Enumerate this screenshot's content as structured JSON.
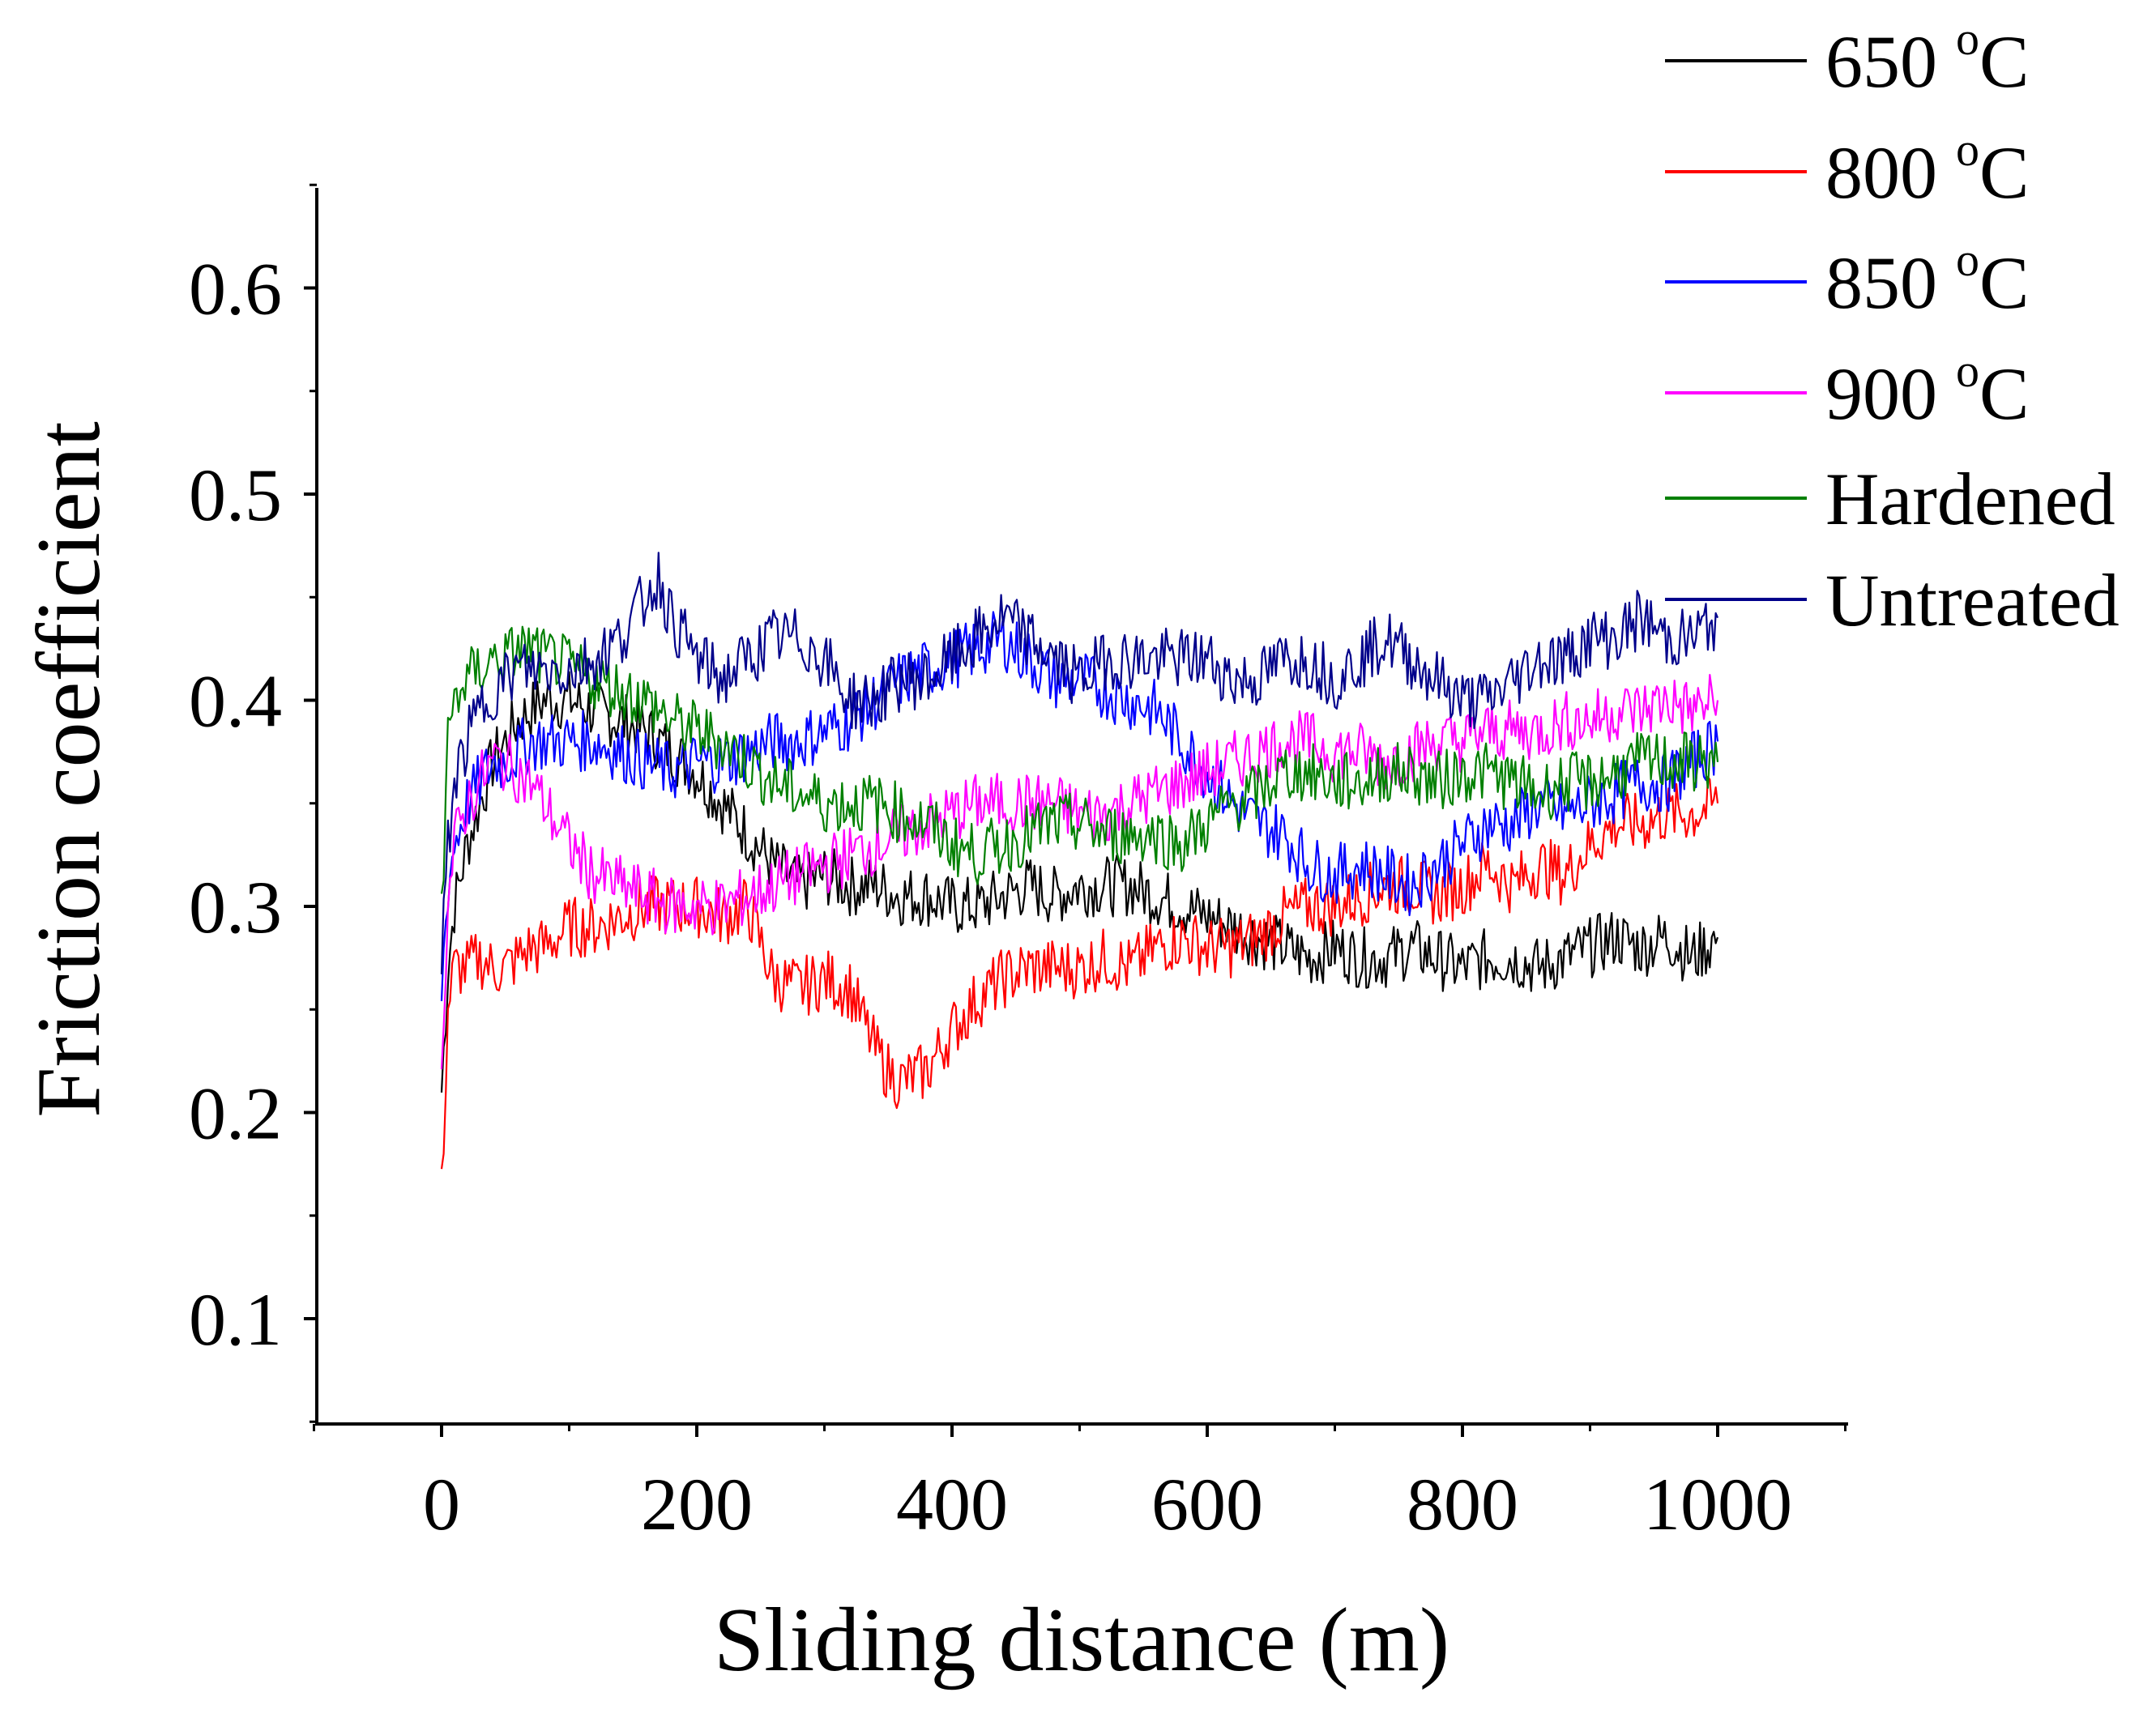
{
  "chart_data": {
    "type": "line",
    "title": "",
    "xlabel": "Sliding distance (m)",
    "ylabel": "Friction coefficient",
    "xlim": [
      -100,
      1100
    ],
    "ylim": [
      0.05,
      0.65
    ],
    "x_ticks": [
      0,
      200,
      400,
      600,
      800,
      1000
    ],
    "x_tick_labels": [
      "0",
      "200",
      "400",
      "600",
      "800",
      "1000"
    ],
    "y_ticks": [
      0.1,
      0.2,
      0.3,
      0.4,
      0.5,
      0.6
    ],
    "y_tick_labels": [
      "0.1",
      "0.2",
      "0.3",
      "0.4",
      "0.5",
      "0.6"
    ],
    "grid": false,
    "legend_position": "top-right",
    "series": [
      {
        "name": "650 oC",
        "name_main": "650 ",
        "name_sup": "o",
        "name_tail": "C",
        "color": "#000000",
        "x": [
          0,
          5,
          10,
          20,
          30,
          40,
          50,
          60,
          70,
          80,
          90,
          100,
          120,
          140,
          160,
          180,
          200,
          220,
          240,
          260,
          280,
          300,
          320,
          340,
          360,
          380,
          400,
          420,
          440,
          460,
          480,
          500,
          520,
          540,
          560,
          580,
          600,
          620,
          640,
          660,
          680,
          700,
          720,
          740,
          760,
          780,
          800,
          820,
          840,
          860,
          880,
          900,
          920,
          940,
          960,
          980,
          1000
        ],
        "y": [
          0.21,
          0.27,
          0.3,
          0.33,
          0.35,
          0.37,
          0.38,
          0.39,
          0.395,
          0.4,
          0.4,
          0.4,
          0.395,
          0.39,
          0.385,
          0.375,
          0.365,
          0.35,
          0.335,
          0.32,
          0.31,
          0.315,
          0.31,
          0.31,
          0.305,
          0.305,
          0.3,
          0.3,
          0.305,
          0.31,
          0.305,
          0.31,
          0.31,
          0.31,
          0.305,
          0.3,
          0.295,
          0.29,
          0.285,
          0.28,
          0.275,
          0.28,
          0.275,
          0.275,
          0.28,
          0.275,
          0.27,
          0.275,
          0.275,
          0.27,
          0.275,
          0.28,
          0.285,
          0.28,
          0.285,
          0.275,
          0.285
        ]
      },
      {
        "name": "800 oC",
        "name_main": "800 ",
        "name_sup": "o",
        "name_tail": "C",
        "color": "#ff0000",
        "x": [
          0,
          5,
          10,
          20,
          30,
          40,
          50,
          60,
          70,
          80,
          90,
          100,
          120,
          140,
          160,
          180,
          200,
          220,
          240,
          260,
          280,
          300,
          320,
          340,
          350,
          360,
          380,
          400,
          420,
          440,
          460,
          480,
          500,
          520,
          540,
          560,
          580,
          600,
          620,
          640,
          660,
          680,
          700,
          720,
          740,
          760,
          780,
          800,
          820,
          840,
          860,
          880,
          900,
          920,
          940,
          960,
          980,
          1000
        ],
        "y": [
          0.16,
          0.25,
          0.27,
          0.27,
          0.275,
          0.27,
          0.27,
          0.275,
          0.28,
          0.28,
          0.285,
          0.29,
          0.29,
          0.295,
          0.3,
          0.3,
          0.3,
          0.295,
          0.3,
          0.265,
          0.26,
          0.265,
          0.26,
          0.23,
          0.22,
          0.215,
          0.22,
          0.24,
          0.255,
          0.265,
          0.27,
          0.27,
          0.27,
          0.275,
          0.27,
          0.28,
          0.285,
          0.28,
          0.28,
          0.285,
          0.295,
          0.3,
          0.3,
          0.305,
          0.31,
          0.31,
          0.305,
          0.31,
          0.32,
          0.31,
          0.32,
          0.315,
          0.33,
          0.34,
          0.34,
          0.345,
          0.345,
          0.35
        ]
      },
      {
        "name": "850 oC",
        "name_main": "850 ",
        "name_sup": "o",
        "name_tail": "C",
        "color": "#0000ff",
        "x": [
          0,
          5,
          10,
          20,
          30,
          40,
          50,
          60,
          70,
          80,
          90,
          100,
          120,
          140,
          160,
          180,
          200,
          220,
          240,
          260,
          280,
          300,
          320,
          340,
          360,
          380,
          400,
          420,
          440,
          460,
          480,
          500,
          520,
          540,
          560,
          580,
          600,
          620,
          640,
          660,
          680,
          700,
          720,
          740,
          760,
          780,
          800,
          820,
          840,
          860,
          880,
          900,
          920,
          940,
          960,
          980,
          1000
        ],
        "y": [
          0.26,
          0.31,
          0.33,
          0.35,
          0.36,
          0.37,
          0.37,
          0.375,
          0.38,
          0.38,
          0.38,
          0.38,
          0.38,
          0.375,
          0.37,
          0.365,
          0.37,
          0.37,
          0.375,
          0.38,
          0.38,
          0.385,
          0.39,
          0.4,
          0.41,
          0.415,
          0.42,
          0.425,
          0.43,
          0.42,
          0.41,
          0.41,
          0.405,
          0.4,
          0.395,
          0.38,
          0.365,
          0.35,
          0.34,
          0.335,
          0.32,
          0.315,
          0.32,
          0.315,
          0.31,
          0.32,
          0.33,
          0.34,
          0.34,
          0.35,
          0.345,
          0.35,
          0.355,
          0.36,
          0.36,
          0.37,
          0.38
        ]
      },
      {
        "name": "900 oC",
        "name_main": "900 ",
        "name_sup": "o",
        "name_tail": "C",
        "color": "#ff00ff",
        "x": [
          0,
          5,
          10,
          20,
          30,
          40,
          50,
          60,
          70,
          80,
          90,
          100,
          120,
          140,
          160,
          180,
          200,
          220,
          240,
          260,
          280,
          300,
          320,
          340,
          360,
          380,
          400,
          420,
          440,
          460,
          480,
          500,
          520,
          540,
          560,
          580,
          600,
          620,
          640,
          660,
          680,
          700,
          720,
          740,
          760,
          780,
          800,
          820,
          840,
          860,
          880,
          900,
          920,
          940,
          960,
          980,
          1000
        ],
        "y": [
          0.23,
          0.3,
          0.33,
          0.35,
          0.36,
          0.37,
          0.37,
          0.365,
          0.36,
          0.35,
          0.34,
          0.33,
          0.315,
          0.31,
          0.305,
          0.3,
          0.3,
          0.3,
          0.305,
          0.31,
          0.315,
          0.32,
          0.325,
          0.33,
          0.335,
          0.34,
          0.345,
          0.35,
          0.35,
          0.35,
          0.35,
          0.345,
          0.345,
          0.35,
          0.355,
          0.36,
          0.365,
          0.37,
          0.375,
          0.38,
          0.38,
          0.375,
          0.375,
          0.37,
          0.375,
          0.38,
          0.38,
          0.385,
          0.385,
          0.385,
          0.39,
          0.39,
          0.395,
          0.395,
          0.4,
          0.395,
          0.4
        ]
      },
      {
        "name": "Hardened",
        "name_main": "Hardened",
        "name_sup": "",
        "name_tail": "",
        "color": "#008000",
        "x": [
          0,
          5,
          10,
          20,
          30,
          40,
          50,
          60,
          70,
          80,
          90,
          100,
          120,
          140,
          160,
          180,
          200,
          220,
          240,
          260,
          280,
          300,
          320,
          340,
          360,
          380,
          400,
          420,
          440,
          460,
          480,
          500,
          520,
          540,
          560,
          580,
          600,
          620,
          640,
          660,
          680,
          700,
          720,
          740,
          760,
          780,
          800,
          820,
          840,
          860,
          880,
          900,
          920,
          940,
          960,
          980,
          1000
        ],
        "y": [
          0.3,
          0.38,
          0.4,
          0.41,
          0.415,
          0.42,
          0.42,
          0.425,
          0.425,
          0.42,
          0.42,
          0.415,
          0.41,
          0.405,
          0.4,
          0.39,
          0.385,
          0.38,
          0.37,
          0.36,
          0.355,
          0.35,
          0.35,
          0.35,
          0.345,
          0.34,
          0.33,
          0.325,
          0.33,
          0.335,
          0.34,
          0.34,
          0.335,
          0.335,
          0.335,
          0.33,
          0.34,
          0.35,
          0.355,
          0.365,
          0.365,
          0.36,
          0.36,
          0.365,
          0.365,
          0.36,
          0.365,
          0.365,
          0.36,
          0.355,
          0.36,
          0.36,
          0.365,
          0.37,
          0.37,
          0.37,
          0.37
        ]
      },
      {
        "name": "Untreated",
        "name_main": "Untreated",
        "name_sup": "",
        "name_tail": "",
        "color": "#00008b",
        "x": [
          0,
          5,
          10,
          20,
          30,
          40,
          50,
          60,
          70,
          80,
          90,
          100,
          120,
          140,
          160,
          170,
          180,
          200,
          220,
          240,
          260,
          280,
          300,
          320,
          340,
          360,
          380,
          400,
          420,
          440,
          460,
          480,
          500,
          520,
          540,
          560,
          580,
          600,
          620,
          640,
          660,
          680,
          700,
          720,
          740,
          760,
          780,
          800,
          820,
          840,
          860,
          880,
          900,
          920,
          940,
          960,
          980,
          1000
        ],
        "y": [
          0.27,
          0.33,
          0.36,
          0.38,
          0.395,
          0.405,
          0.41,
          0.415,
          0.415,
          0.415,
          0.415,
          0.415,
          0.42,
          0.43,
          0.45,
          0.46,
          0.44,
          0.42,
          0.41,
          0.42,
          0.43,
          0.43,
          0.42,
          0.4,
          0.4,
          0.41,
          0.41,
          0.42,
          0.43,
          0.44,
          0.43,
          0.42,
          0.41,
          0.42,
          0.42,
          0.42,
          0.42,
          0.42,
          0.41,
          0.41,
          0.42,
          0.42,
          0.41,
          0.42,
          0.43,
          0.42,
          0.41,
          0.4,
          0.4,
          0.41,
          0.42,
          0.42,
          0.43,
          0.43,
          0.44,
          0.43,
          0.43,
          0.44
        ]
      }
    ]
  }
}
